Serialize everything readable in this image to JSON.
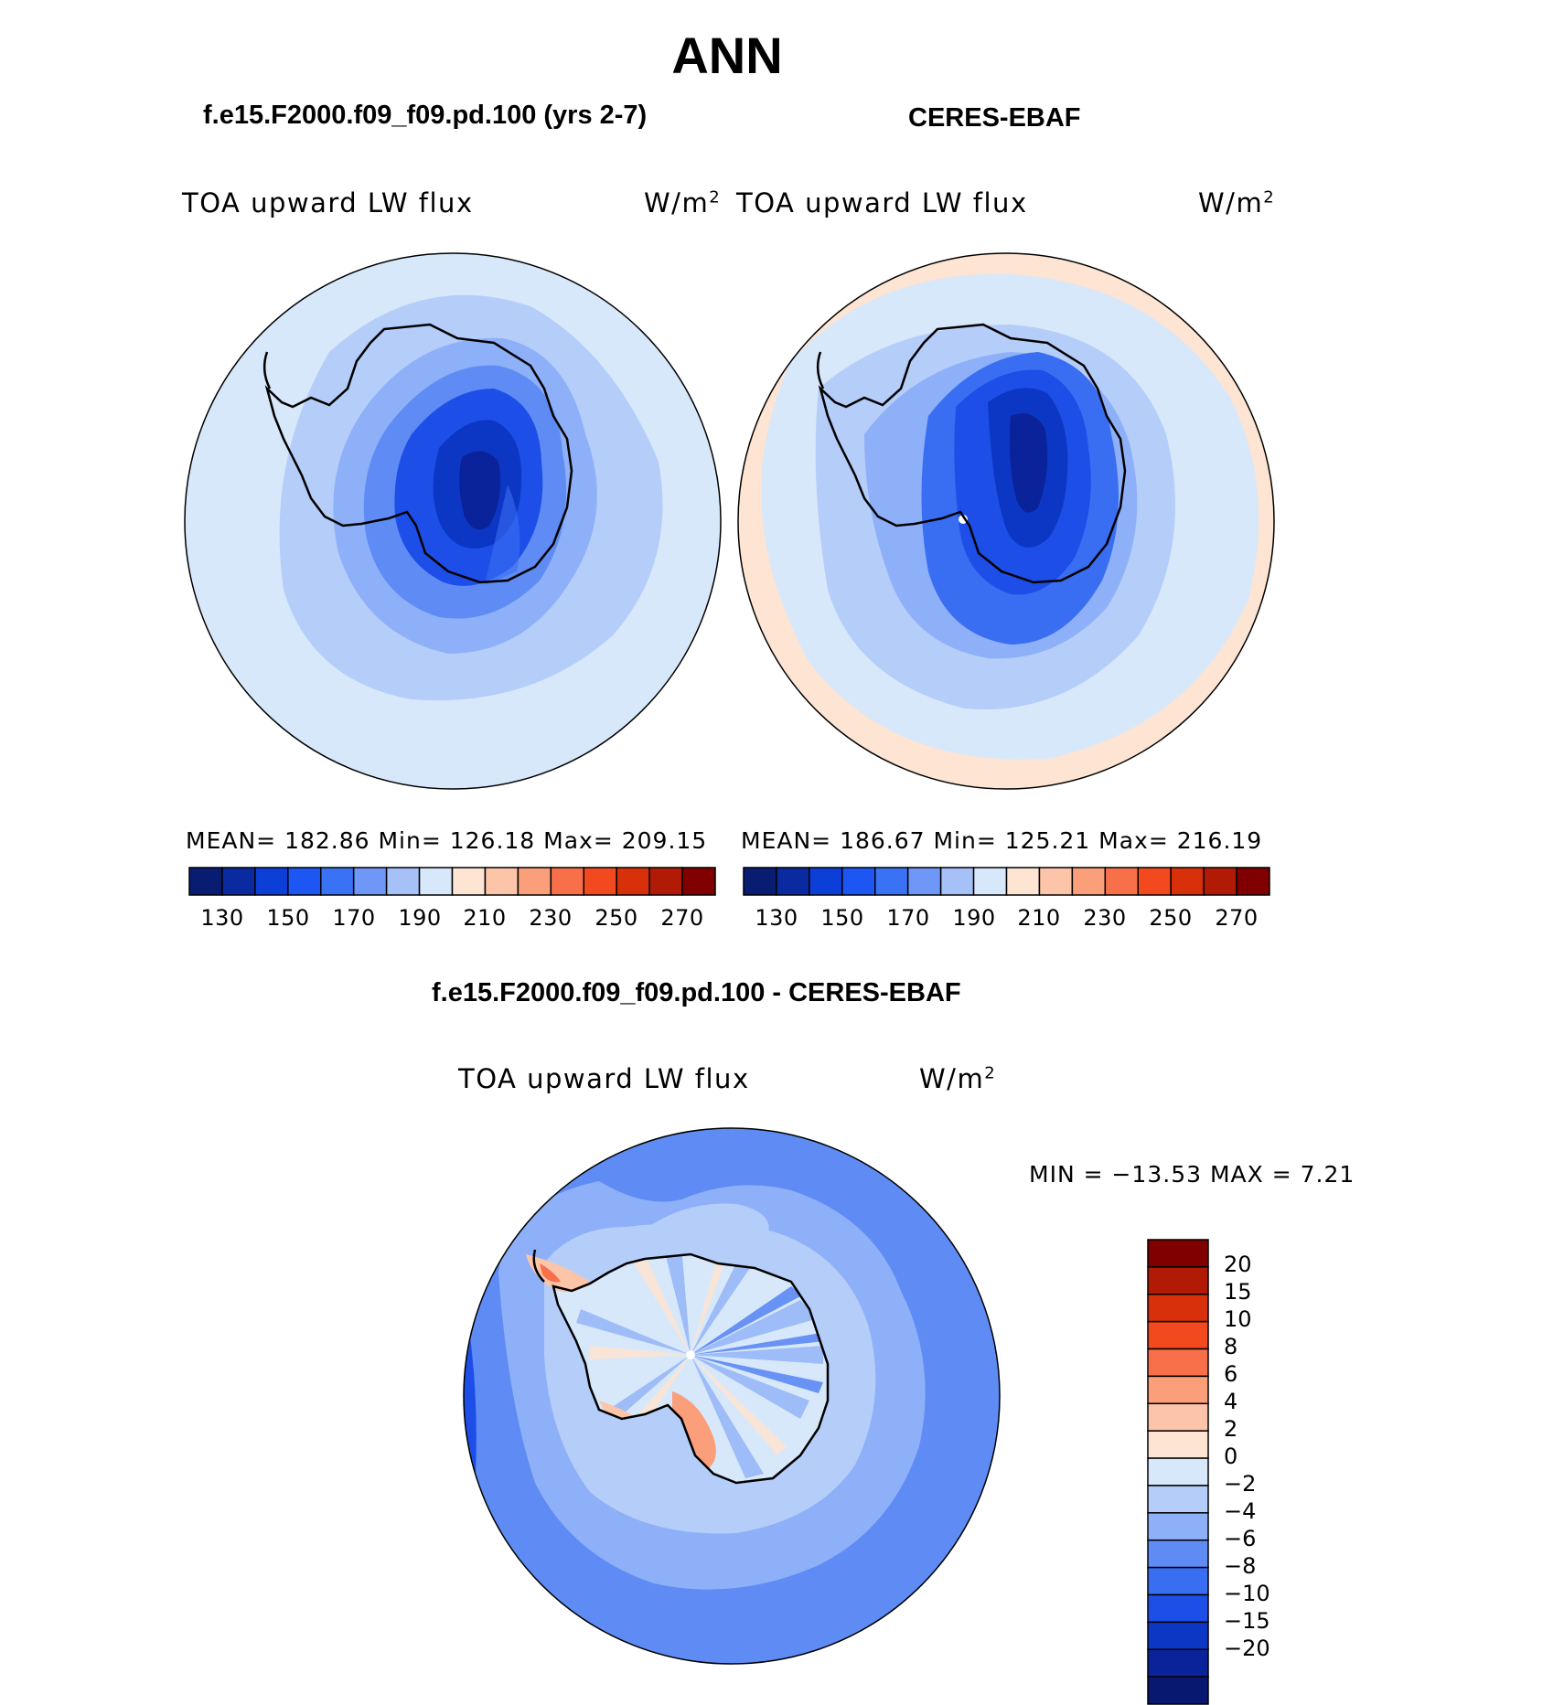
{
  "title": "ANN",
  "panels": [
    {
      "case_title": "f.e15.F2000.f09_f09.pd.100 (yrs 2-7)",
      "variable": "TOA upward LW flux",
      "units": "W/m",
      "units_sup": "2",
      "stats": "MEAN= 182.86   Min= 126.18   Max= 209.15"
    },
    {
      "case_title": "CERES-EBAF",
      "variable": "TOA upward LW flux",
      "units": "W/m",
      "units_sup": "2",
      "stats": "MEAN= 186.67   Min= 125.21   Max= 216.19"
    }
  ],
  "colorbar_main": {
    "colors": [
      "#081d72",
      "#0a2aa0",
      "#0c3ed8",
      "#1d56f2",
      "#3a72f5",
      "#6f97f7",
      "#a6c0f8",
      "#d7e8fb",
      "#fde4d3",
      "#fcc4a8",
      "#fb9e7a",
      "#f8704a",
      "#f24a1e",
      "#d9300c",
      "#b11b06",
      "#800000"
    ],
    "ticks": [
      "130",
      "150",
      "170",
      "190",
      "210",
      "230",
      "250",
      "270"
    ]
  },
  "diff": {
    "case_title": "f.e15.F2000.f09_f09.pd.100 - CERES-EBAF",
    "variable": "TOA upward LW flux",
    "units": "W/m",
    "units_sup": "2",
    "minmax": "MIN = −13.53 MAX =    7.21",
    "colorbar": {
      "colors": [
        "#800000",
        "#b11b06",
        "#d9300c",
        "#f24a1e",
        "#f8704a",
        "#fb9e7a",
        "#fcc4a8",
        "#fde4d3",
        "#d7e8fb",
        "#b5cdf9",
        "#8eb0f8",
        "#5f8cf4",
        "#3a6ef2",
        "#1d4fe8",
        "#0c36c4",
        "#0a239a",
        "#081870"
      ],
      "ticks": [
        "20",
        "15",
        "10",
        "8",
        "6",
        "4",
        "2",
        "0",
        "−2",
        "−4",
        "−6",
        "−8",
        "−10",
        "−15",
        "−20"
      ]
    }
  },
  "map_colors": {
    "orange_light": "#fde4d3",
    "orange_mid": "#fcc4a8",
    "blue_0": "#d7e8fb",
    "blue_1": "#b5cdf9",
    "blue_2": "#8eb0f8",
    "blue_3": "#5f8cf4",
    "blue_4": "#3a6ef2",
    "blue_5": "#1d4fe8",
    "blue_6": "#0c36c4",
    "blue_7": "#0a239a"
  }
}
